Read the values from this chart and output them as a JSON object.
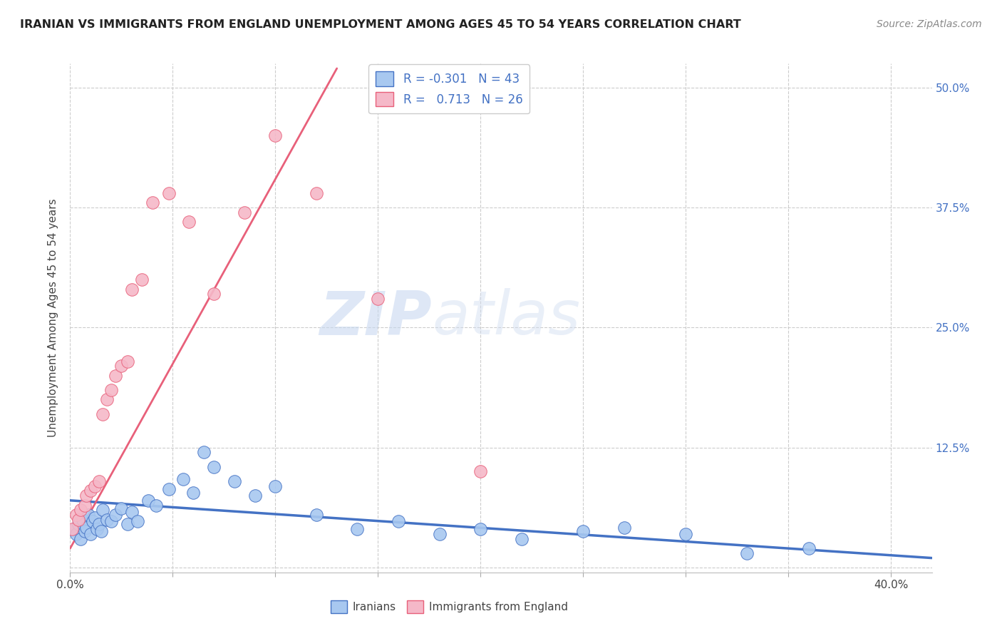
{
  "title": "IRANIAN VS IMMIGRANTS FROM ENGLAND UNEMPLOYMENT AMONG AGES 45 TO 54 YEARS CORRELATION CHART",
  "source": "Source: ZipAtlas.com",
  "ylabel": "Unemployment Among Ages 45 to 54 years",
  "xlim": [
    0.0,
    0.42
  ],
  "ylim": [
    -0.005,
    0.525
  ],
  "xticks": [
    0.0,
    0.05,
    0.1,
    0.15,
    0.2,
    0.25,
    0.3,
    0.35,
    0.4
  ],
  "ytick_positions": [
    0.0,
    0.125,
    0.25,
    0.375,
    0.5
  ],
  "ytick_labels_right": [
    "",
    "12.5%",
    "25.0%",
    "37.5%",
    "50.0%"
  ],
  "watermark_zip": "ZIP",
  "watermark_atlas": "atlas",
  "legend_R_blue": "-0.301",
  "legend_N_blue": "43",
  "legend_R_pink": "0.713",
  "legend_N_pink": "26",
  "blue_color": "#A8C8F0",
  "pink_color": "#F5B8C8",
  "blue_line_color": "#4472C4",
  "pink_line_color": "#E8607A",
  "iranians_x": [
    0.002,
    0.003,
    0.004,
    0.005,
    0.006,
    0.007,
    0.008,
    0.009,
    0.01,
    0.011,
    0.012,
    0.013,
    0.014,
    0.015,
    0.016,
    0.018,
    0.02,
    0.022,
    0.025,
    0.028,
    0.03,
    0.033,
    0.038,
    0.042,
    0.048,
    0.055,
    0.06,
    0.065,
    0.07,
    0.08,
    0.09,
    0.1,
    0.12,
    0.14,
    0.16,
    0.18,
    0.2,
    0.22,
    0.25,
    0.27,
    0.3,
    0.33,
    0.36
  ],
  "iranians_y": [
    0.04,
    0.035,
    0.045,
    0.03,
    0.05,
    0.038,
    0.042,
    0.055,
    0.035,
    0.048,
    0.052,
    0.04,
    0.045,
    0.038,
    0.06,
    0.05,
    0.048,
    0.055,
    0.062,
    0.045,
    0.058,
    0.048,
    0.07,
    0.065,
    0.082,
    0.092,
    0.078,
    0.12,
    0.105,
    0.09,
    0.075,
    0.085,
    0.055,
    0.04,
    0.048,
    0.035,
    0.04,
    0.03,
    0.038,
    0.042,
    0.035,
    0.015,
    0.02
  ],
  "england_x": [
    0.001,
    0.003,
    0.004,
    0.005,
    0.007,
    0.008,
    0.01,
    0.012,
    0.014,
    0.016,
    0.018,
    0.02,
    0.022,
    0.025,
    0.028,
    0.03,
    0.035,
    0.04,
    0.048,
    0.058,
    0.07,
    0.085,
    0.1,
    0.12,
    0.15,
    0.2
  ],
  "england_y": [
    0.04,
    0.055,
    0.05,
    0.06,
    0.065,
    0.075,
    0.08,
    0.085,
    0.09,
    0.16,
    0.175,
    0.185,
    0.2,
    0.21,
    0.215,
    0.29,
    0.3,
    0.38,
    0.39,
    0.36,
    0.285,
    0.37,
    0.45,
    0.39,
    0.28,
    0.1
  ],
  "blue_trendline_x": [
    0.0,
    0.42
  ],
  "blue_trendline_y": [
    0.07,
    0.01
  ],
  "pink_trendline_x": [
    0.0,
    0.13
  ],
  "pink_trendline_y": [
    0.02,
    0.52
  ]
}
